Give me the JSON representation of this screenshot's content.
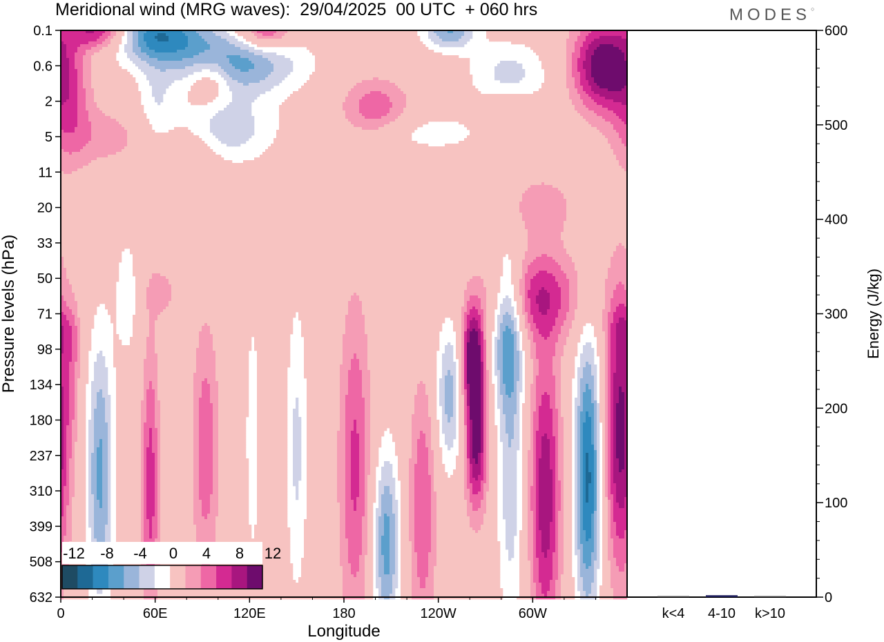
{
  "title": "Meridional wind (MRG waves):  29/04/2025  00 UTC  + 060 hrs",
  "logo_text": "MODES",
  "colors": {
    "neg": [
      "#1e4b63",
      "#1e6995",
      "#2e89be",
      "#5b9fcc",
      "#9ab5da",
      "#cfd2e7"
    ],
    "pos": [
      "#f7c3c1",
      "#f59cb5",
      "#ee67a5",
      "#d42a92",
      "#a8167f",
      "#6e0c6d"
    ],
    "frame": "#000000"
  },
  "chart_data": [
    {
      "type": "heatmap",
      "description_field": "contour map of meridional wind, longitude vs pressure",
      "xlabel": "Longitude",
      "ylabel": "Pressure levels (hPa)",
      "x_ticks": [
        "0",
        "60E",
        "120E",
        "180",
        "120W",
        "60W"
      ],
      "x_tick_lon": [
        0,
        60,
        120,
        180,
        240,
        300
      ],
      "xlim": [
        0,
        360
      ],
      "y_ticks": [
        "0.1",
        "0.6",
        "2",
        "5",
        "11",
        "20",
        "33",
        "50",
        "71",
        "98",
        "134",
        "180",
        "237",
        "310",
        "399",
        "508",
        "632"
      ],
      "colorbar_labels": [
        "-12",
        "-8",
        "-4",
        "0",
        "4",
        "8",
        "12"
      ],
      "levels": [
        -14,
        -12,
        -10,
        -8,
        -6,
        -4,
        -2,
        2,
        4,
        6,
        8,
        10,
        12,
        14
      ],
      "features": [
        {
          "lon": 25,
          "lev": 12.5,
          "amp": -8.5,
          "wlon": 6,
          "wlev": 2.8
        },
        {
          "lon": 57,
          "lev": 12.8,
          "amp": 7,
          "wlon": 4,
          "wlev": 2.8
        },
        {
          "lon": 42,
          "lev": 7.5,
          "amp": -3,
          "wlon": 6,
          "wlev": 1.5
        },
        {
          "lon": 92,
          "lev": 11.8,
          "amp": 5.5,
          "wlon": 6,
          "wlev": 2.5
        },
        {
          "lon": 122,
          "lev": 11.5,
          "amp": -4,
          "wlon": 3,
          "wlev": 2.4
        },
        {
          "lon": 150,
          "lev": 11.8,
          "amp": -4.5,
          "wlon": 5,
          "wlev": 3
        },
        {
          "lon": 187,
          "lev": 12.3,
          "amp": 6.5,
          "wlon": 7,
          "wlev": 3.2
        },
        {
          "lon": 207,
          "lev": 14.5,
          "amp": -9,
          "wlon": 6,
          "wlev": 1.9
        },
        {
          "lon": 230,
          "lev": 13.5,
          "amp": 6,
          "wlon": 6,
          "wlev": 2.5
        },
        {
          "lon": 247,
          "lev": 10.3,
          "amp": -7,
          "wlon": 6,
          "wlev": 1.5
        },
        {
          "lon": 262,
          "lev": 9.2,
          "amp": 12,
          "wlon": 5,
          "wlev": 1
        },
        {
          "lon": 264,
          "lev": 11.6,
          "amp": 11,
          "wlon": 5,
          "wlev": 1.4
        },
        {
          "lon": 284,
          "lev": 8.4,
          "amp": -9,
          "wlon": 7,
          "wlev": 1.5
        },
        {
          "lon": 286,
          "lev": 12.5,
          "amp": -5.5,
          "wlon": 6,
          "wlev": 3.2
        },
        {
          "lon": 308,
          "lev": 13.1,
          "amp": 9.5,
          "wlon": 7,
          "wlev": 3
        },
        {
          "lon": 335,
          "lev": 12.6,
          "amp": -12.5,
          "wlon": 6,
          "wlev": 2.8
        },
        {
          "lon": 356,
          "lev": 11.3,
          "amp": 11,
          "wlon": 7,
          "wlev": 2.8
        },
        {
          "lon": 302,
          "lev": 7.5,
          "amp": 7,
          "wlon": 22,
          "wlev": 0.9
        },
        {
          "lon": 60,
          "lev": 0.1,
          "amp": -11,
          "wlon": 22,
          "wlev": 0.55
        },
        {
          "lon": 110,
          "lev": 0.9,
          "amp": -9,
          "wlon": 30,
          "wlev": 0.65
        },
        {
          "lon": 25,
          "lev": 0,
          "amp": 10,
          "wlon": 14,
          "wlev": 0.4
        },
        {
          "lon": 130,
          "lev": 0,
          "amp": 8,
          "wlon": 12,
          "wlev": 0.4
        },
        {
          "lon": 345,
          "lev": 1,
          "amp": 12,
          "wlon": 14,
          "wlev": 0.9
        },
        {
          "lon": 247,
          "lev": 0,
          "amp": -8,
          "wlon": 12,
          "wlev": 0.4
        },
        {
          "lon": 285,
          "lev": 1.3,
          "amp": -5,
          "wlon": 18,
          "wlev": 0.7
        },
        {
          "lon": 5,
          "lev": 2,
          "amp": 5,
          "wlon": 10,
          "wlev": 1.3
        },
        {
          "lon": 100,
          "lev": 2.8,
          "amp": -6,
          "wlon": 25,
          "wlev": 0.7
        },
        {
          "lon": 200,
          "lev": 2.2,
          "amp": 5.5,
          "wlon": 15,
          "wlev": 0.6
        },
        {
          "lon": 95,
          "lev": 1.4,
          "amp": 5,
          "wlon": 10,
          "wlev": 0.5
        },
        {
          "lon": 285,
          "lev": 2.5,
          "amp": 3.5,
          "wlon": 12,
          "wlev": 0.6
        },
        {
          "lon": 85,
          "lev": 3.5,
          "amp": 3.5,
          "wlon": 12,
          "wlev": 0.9
        },
        {
          "lon": 30,
          "lev": 3,
          "amp": 3,
          "wlon": 22,
          "wlev": 0.6
        },
        {
          "lon": 235,
          "lev": 2.9,
          "amp": -3,
          "wlon": 30,
          "wlev": 0.4
        },
        {
          "lon": 305,
          "lev": 5,
          "amp": 3.5,
          "wlon": 15,
          "wlev": 0.6
        },
        {
          "lon": 60,
          "lev": 2,
          "amp": -3,
          "wlon": 8,
          "wlev": 0.8
        },
        {
          "lon": 64,
          "lev": 7.4,
          "amp": 3,
          "wlon": 7,
          "wlev": 0.5
        },
        {
          "lon": 8,
          "lev": 9.5,
          "amp": 3,
          "wlon": 3,
          "wlev": 1.3
        },
        {
          "lon": 360,
          "lev": 8.5,
          "amp": 3,
          "wlon": 8,
          "wlev": 0.5
        }
      ]
    },
    {
      "type": "bar",
      "categories": [
        "k<4",
        "4-10",
        "k>10"
      ],
      "values": [
        0,
        2,
        0
      ],
      "ylabel": "Energy (J/kg)",
      "ylim": [
        0,
        600
      ],
      "y_ticks": [
        "0",
        "100",
        "200",
        "300",
        "400",
        "500",
        "600"
      ]
    }
  ]
}
